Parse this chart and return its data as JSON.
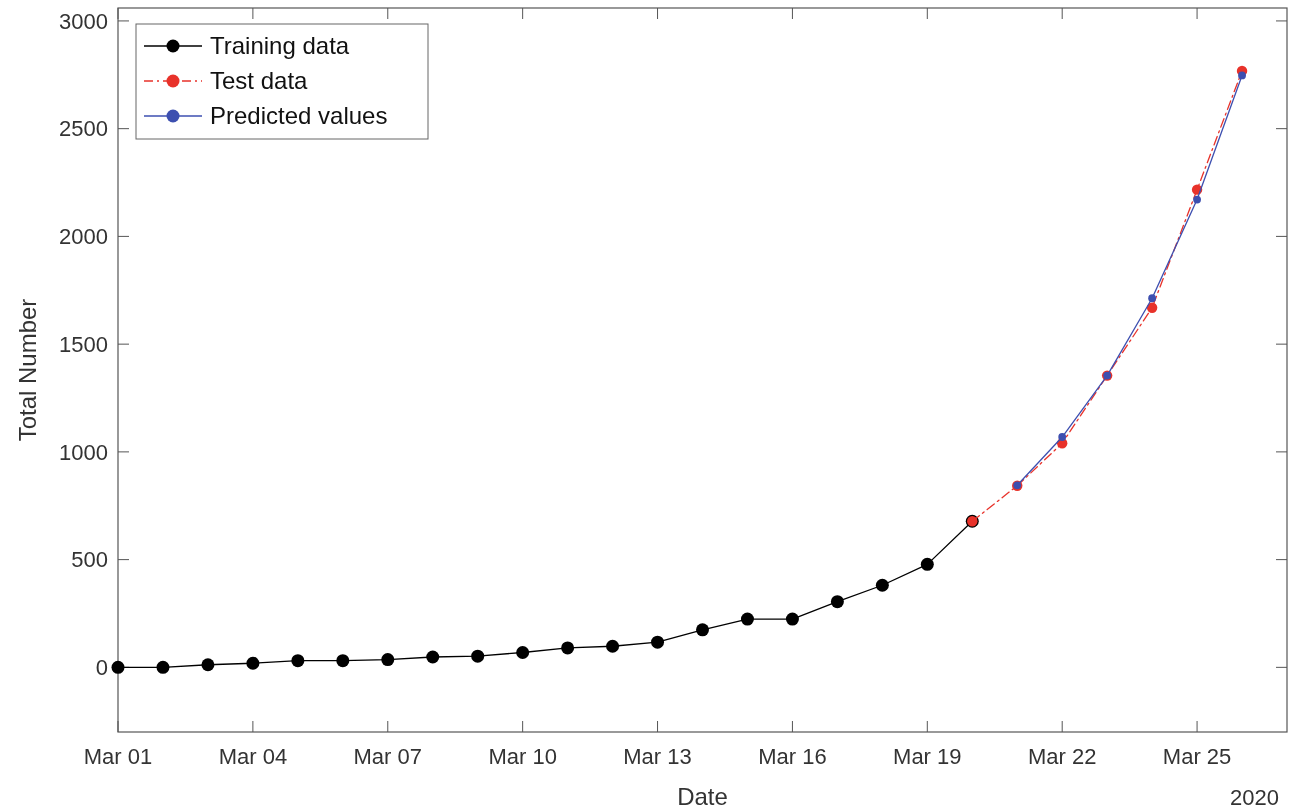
{
  "chart_data": {
    "type": "line",
    "xlabel": "Date",
    "ylabel": "Total Number",
    "annotations": [
      "2020"
    ],
    "xlim": [
      "2020-03-01",
      "2020-03-27"
    ],
    "ylim": [
      -300,
      3060
    ],
    "xticks": [
      {
        "value": "2020-03-01",
        "label": "Mar 01"
      },
      {
        "value": "2020-03-04",
        "label": "Mar 04"
      },
      {
        "value": "2020-03-07",
        "label": "Mar 07"
      },
      {
        "value": "2020-03-10",
        "label": "Mar 10"
      },
      {
        "value": "2020-03-13",
        "label": "Mar 13"
      },
      {
        "value": "2020-03-16",
        "label": "Mar 16"
      },
      {
        "value": "2020-03-19",
        "label": "Mar 19"
      },
      {
        "value": "2020-03-22",
        "label": "Mar 22"
      },
      {
        "value": "2020-03-25",
        "label": "Mar 25"
      }
    ],
    "yticks": [
      0,
      500,
      1000,
      1500,
      2000,
      2500,
      3000
    ],
    "grid": false,
    "legend": "top left",
    "marker": "circle",
    "series": [
      {
        "name": "Training data",
        "color": "#000000",
        "line_style": "solid",
        "x": [
          "2020-03-01",
          "2020-03-02",
          "2020-03-03",
          "2020-03-04",
          "2020-03-05",
          "2020-03-06",
          "2020-03-07",
          "2020-03-08",
          "2020-03-09",
          "2020-03-10",
          "2020-03-11",
          "2020-03-12",
          "2020-03-13",
          "2020-03-14",
          "2020-03-15",
          "2020-03-16",
          "2020-03-17",
          "2020-03-18",
          "2020-03-19",
          "2020-03-20"
        ],
        "values": [
          0,
          0,
          12,
          19,
          31,
          31,
          36,
          48,
          52,
          69,
          90,
          98,
          117,
          174,
          224,
          224,
          305,
          381,
          478,
          678
        ]
      },
      {
        "name": "Test data",
        "color": "#e8322a",
        "line_style": "dashed",
        "x": [
          "2020-03-20",
          "2020-03-21",
          "2020-03-22",
          "2020-03-23",
          "2020-03-24",
          "2020-03-25",
          "2020-03-26"
        ],
        "values": [
          678,
          843,
          1040,
          1354,
          1669,
          2217,
          2768
        ]
      },
      {
        "name": "Predicted values",
        "color": "#3d4fb0",
        "line_style": "solid",
        "x": [
          "2020-03-21",
          "2020-03-22",
          "2020-03-23",
          "2020-03-24",
          "2020-03-25",
          "2020-03-26"
        ],
        "values": [
          845,
          1069,
          1354,
          1713,
          2171,
          2747
        ]
      }
    ]
  }
}
